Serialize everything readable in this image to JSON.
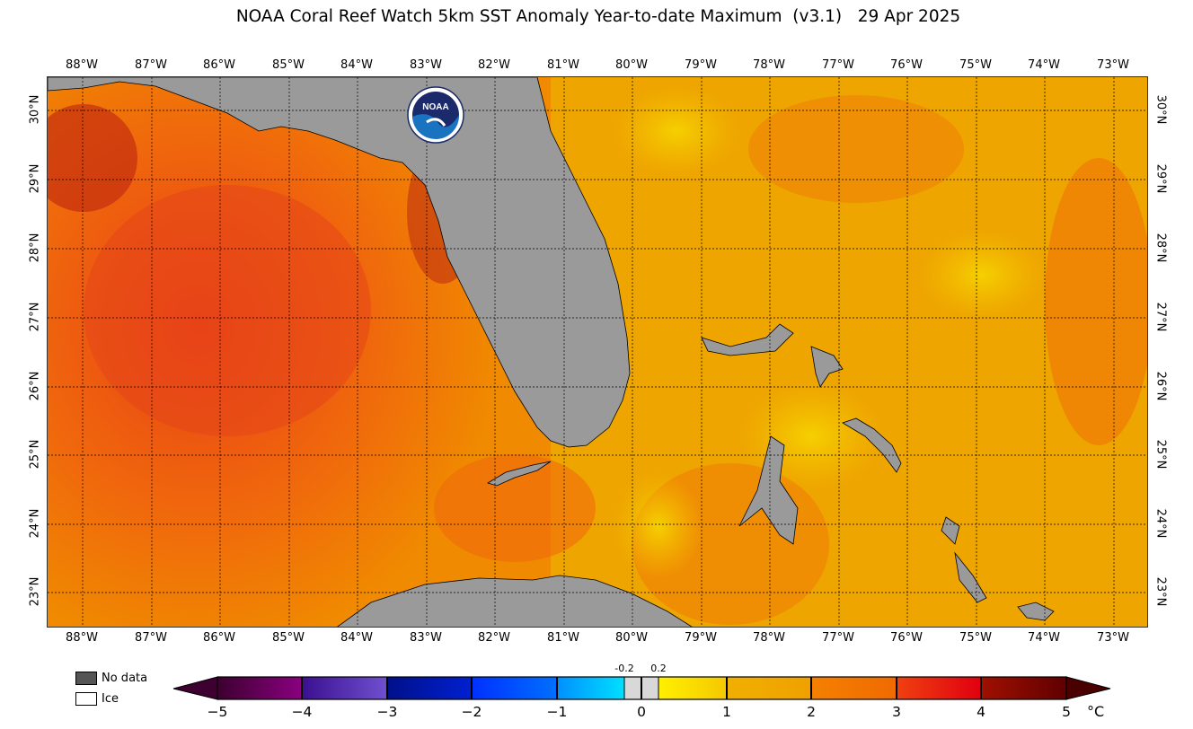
{
  "title": "NOAA Coral Reef Watch 5km SST Anomaly Year-to-date Maximum  (v3.1)   29 Apr 2025",
  "logo": {
    "text": "NOAA",
    "icon": "noaa-logo"
  },
  "longitude_labels": [
    "88°W",
    "87°W",
    "86°W",
    "85°W",
    "84°W",
    "83°W",
    "82°W",
    "81°W",
    "80°W",
    "79°W",
    "78°W",
    "77°W",
    "76°W",
    "75°W",
    "74°W",
    "73°W"
  ],
  "latitude_labels": [
    "30°N",
    "29°N",
    "28°N",
    "27°N",
    "26°N",
    "25°N",
    "24°N",
    "23°N"
  ],
  "legend": {
    "no_data": "No data",
    "ice": "Ice",
    "no_data_color": "#555555",
    "ice_color": "#ffffff"
  },
  "colorbar": {
    "labels": [
      "−5",
      "−4",
      "−3",
      "−2",
      "−1",
      "0",
      "1",
      "2",
      "3",
      "4",
      "5"
    ],
    "small_labels": [
      "-0.2",
      "0.2"
    ],
    "unit": "°C"
  },
  "colors": {
    "land": "#9a9a9a",
    "sea_warm": "#f08a00",
    "sea_hot": "#f04a10",
    "sea_mild": "#f5c000"
  }
}
